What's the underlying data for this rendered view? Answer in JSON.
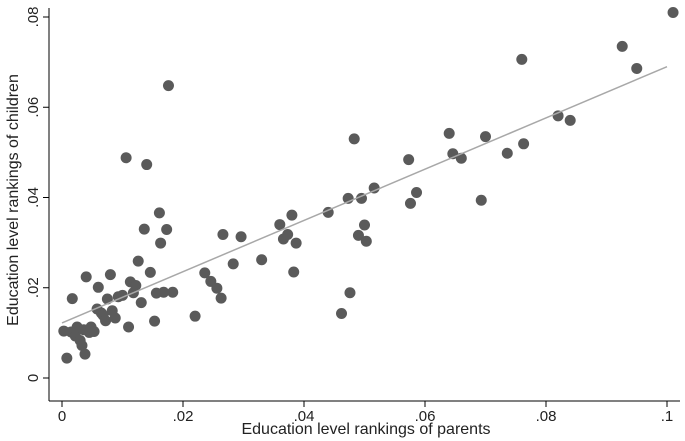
{
  "chart_data": {
    "type": "scatter",
    "xlabel": "Education level rankings of parents",
    "ylabel": "Education level rankings of children",
    "xlim": [
      0,
      0.1
    ],
    "ylim": [
      0,
      0.08
    ],
    "x_ticks": [
      0,
      0.02,
      0.04,
      0.06,
      0.08,
      0.1
    ],
    "y_ticks": [
      0,
      0.02,
      0.04,
      0.06,
      0.08
    ],
    "x_tick_labels": [
      "0",
      ".02",
      ".04",
      ".06",
      ".08",
      ".1"
    ],
    "y_tick_labels": [
      "0",
      ".02",
      ".04",
      ".06",
      ".08"
    ],
    "grid": false,
    "legend": "none",
    "point_color": "#5a5a5a",
    "fit_line_color": "#a8a8a8",
    "fit_line": [
      [
        0,
        0.0122
      ],
      [
        0.1,
        0.069
      ]
    ],
    "points": [
      [
        0.0003,
        0.0104
      ],
      [
        0.0008,
        0.0044
      ],
      [
        0.0015,
        0.0102
      ],
      [
        0.0017,
        0.0176
      ],
      [
        0.0022,
        0.0093
      ],
      [
        0.0025,
        0.0113
      ],
      [
        0.003,
        0.0083
      ],
      [
        0.0033,
        0.0072
      ],
      [
        0.0036,
        0.0107
      ],
      [
        0.0038,
        0.0053
      ],
      [
        0.004,
        0.0224
      ],
      [
        0.0045,
        0.0101
      ],
      [
        0.0048,
        0.0113
      ],
      [
        0.0053,
        0.0103
      ],
      [
        0.0058,
        0.0153
      ],
      [
        0.006,
        0.0201
      ],
      [
        0.0065,
        0.0144
      ],
      [
        0.0068,
        0.0139
      ],
      [
        0.0072,
        0.0127
      ],
      [
        0.0075,
        0.0175
      ],
      [
        0.008,
        0.0229
      ],
      [
        0.0083,
        0.0149
      ],
      [
        0.0088,
        0.0133
      ],
      [
        0.0093,
        0.018
      ],
      [
        0.01,
        0.0183
      ],
      [
        0.0106,
        0.0488
      ],
      [
        0.011,
        0.0113
      ],
      [
        0.0113,
        0.0213
      ],
      [
        0.0118,
        0.0189
      ],
      [
        0.0122,
        0.0205
      ],
      [
        0.0126,
        0.0259
      ],
      [
        0.0131,
        0.0167
      ],
      [
        0.0136,
        0.033
      ],
      [
        0.014,
        0.0473
      ],
      [
        0.0146,
        0.0234
      ],
      [
        0.0153,
        0.0126
      ],
      [
        0.0156,
        0.0188
      ],
      [
        0.0161,
        0.0366
      ],
      [
        0.0163,
        0.0299
      ],
      [
        0.0168,
        0.019
      ],
      [
        0.0173,
        0.0329
      ],
      [
        0.0176,
        0.0648
      ],
      [
        0.0183,
        0.019
      ],
      [
        0.022,
        0.0137
      ],
      [
        0.0236,
        0.0233
      ],
      [
        0.0246,
        0.0214
      ],
      [
        0.0256,
        0.0199
      ],
      [
        0.0263,
        0.0177
      ],
      [
        0.0266,
        0.0318
      ],
      [
        0.0283,
        0.0253
      ],
      [
        0.0296,
        0.0313
      ],
      [
        0.033,
        0.0262
      ],
      [
        0.036,
        0.034
      ],
      [
        0.0366,
        0.0308
      ],
      [
        0.0373,
        0.0318
      ],
      [
        0.038,
        0.0361
      ],
      [
        0.0383,
        0.0235
      ],
      [
        0.0387,
        0.0299
      ],
      [
        0.044,
        0.0367
      ],
      [
        0.0462,
        0.0143
      ],
      [
        0.0473,
        0.0398
      ],
      [
        0.0476,
        0.0189
      ],
      [
        0.0483,
        0.053
      ],
      [
        0.049,
        0.0316
      ],
      [
        0.0495,
        0.0398
      ],
      [
        0.05,
        0.0339
      ],
      [
        0.0503,
        0.0303
      ],
      [
        0.0516,
        0.0421
      ],
      [
        0.0573,
        0.0484
      ],
      [
        0.0576,
        0.0387
      ],
      [
        0.0586,
        0.0411
      ],
      [
        0.064,
        0.0542
      ],
      [
        0.0646,
        0.0497
      ],
      [
        0.066,
        0.0487
      ],
      [
        0.0693,
        0.0394
      ],
      [
        0.07,
        0.0535
      ],
      [
        0.0736,
        0.0498
      ],
      [
        0.076,
        0.0706
      ],
      [
        0.0763,
        0.0519
      ],
      [
        0.082,
        0.0581
      ],
      [
        0.084,
        0.0571
      ],
      [
        0.0926,
        0.0735
      ],
      [
        0.095,
        0.0686
      ],
      [
        0.101,
        0.081
      ]
    ]
  }
}
